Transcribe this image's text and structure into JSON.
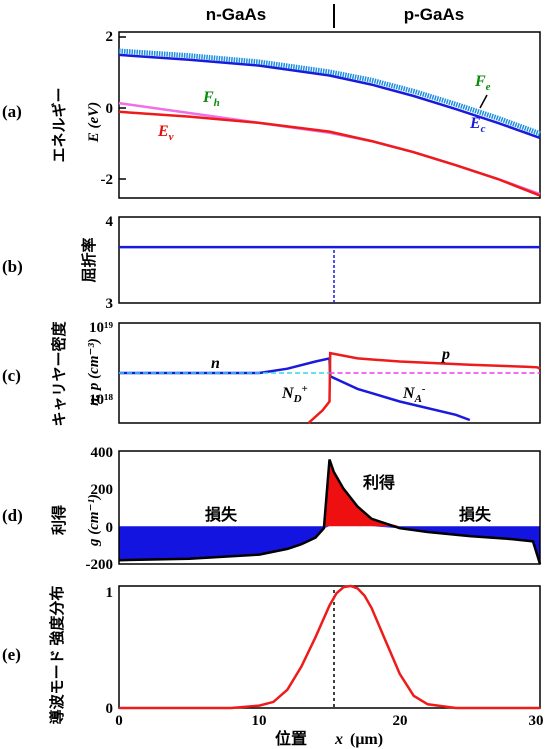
{
  "header": {
    "left": "n-GaAs",
    "right": "p-GaAs"
  },
  "xaxis": {
    "label_prefix": "位置",
    "label_var": "x",
    "label_unit": "(μm)",
    "ticks": [
      "0",
      "10",
      "20",
      "30"
    ],
    "range": [
      0,
      30
    ]
  },
  "chart_data": [
    {
      "type": "line",
      "panel": "(a)",
      "ylabel_jp": "エネルギー",
      "ylabel": "E (eV)",
      "ylim": [
        -2.2,
        2.0
      ],
      "yticks": [
        "2",
        "0",
        "-2"
      ],
      "series": [
        {
          "name": "Ec",
          "color": "#1a1adc",
          "x": [
            0,
            5,
            10,
            15,
            18,
            21,
            24,
            27,
            30
          ],
          "y": [
            1.42,
            1.3,
            1.15,
            0.9,
            0.67,
            0.38,
            0.05,
            -0.3,
            -0.68
          ]
        },
        {
          "name": "Fe",
          "color": "#1c8fe0",
          "x": [
            0,
            5,
            10,
            15,
            18,
            21,
            24,
            27,
            30
          ],
          "y": [
            1.52,
            1.4,
            1.24,
            0.99,
            0.78,
            0.5,
            0.17,
            -0.18,
            -0.57
          ]
        },
        {
          "name": "Fh",
          "color": "#ef6fe6",
          "x": [
            0,
            5,
            10,
            15,
            18,
            21,
            24,
            27,
            30
          ],
          "y": [
            0.2,
            -0.05,
            -0.3,
            -0.55,
            -0.76,
            -1.04,
            -1.37,
            -1.72,
            -2.1
          ]
        },
        {
          "name": "Ev",
          "color": "#ee1b1b",
          "x": [
            0,
            5,
            10,
            15,
            18,
            21,
            24,
            27,
            30
          ],
          "y": [
            -0.02,
            -0.14,
            -0.3,
            -0.52,
            -0.76,
            -1.04,
            -1.37,
            -1.72,
            -2.14
          ]
        }
      ],
      "annotations": [
        {
          "base": "F",
          "sub": "e",
          "color": "#0a8a0a"
        },
        {
          "base": "F",
          "sub": "h",
          "color": "#0a8a0a"
        },
        {
          "base": "E",
          "sub": "v",
          "color": "#e01010"
        },
        {
          "base": "E",
          "sub": "c",
          "color": "#1a1adc"
        }
      ]
    },
    {
      "type": "line",
      "panel": "(b)",
      "ylabel_jp": "屈折率",
      "ylim": [
        3,
        4
      ],
      "yticks": [
        "4",
        "3"
      ],
      "series": [
        {
          "name": "",
          "color": "#1a1adc",
          "x": [
            0,
            30
          ],
          "y": [
            3.65,
            3.65
          ]
        }
      ]
    },
    {
      "type": "line",
      "panel": "(c)",
      "ylabel_jp": "キャリヤー密度",
      "ylabel": "n, p (cm⁻³)",
      "yscale": "log",
      "ylim": [
        4e+17,
        1e+19
      ],
      "yticks": [
        "10¹⁹",
        "10¹⁸"
      ],
      "series": [
        {
          "name": "n",
          "color": "#1a1adc",
          "x": [
            0,
            5,
            10,
            12,
            14,
            15,
            15.05,
            17,
            20,
            24,
            25
          ],
          "y": [
            2e+18,
            2e+18,
            2e+18,
            2.3e+18,
            2.9e+18,
            3.2e+18,
            1.8e+18,
            1.2e+18,
            8e+17,
            5.2e+17,
            4.4e+17
          ]
        },
        {
          "name": "p",
          "color": "#ee1b1b",
          "x": [
            13.5,
            14.5,
            15,
            15.05,
            17,
            20,
            25,
            29,
            29.8,
            30
          ],
          "y": [
            4e+17,
            6e+17,
            8e+17,
            3.8e+18,
            3.2e+18,
            2.9e+18,
            2.6e+18,
            2.45e+18,
            2.4e+18,
            2.3e+18
          ]
        },
        {
          "name": "ND+",
          "color": "#34d6f0",
          "x": [
            0,
            15
          ],
          "y": [
            2e+18,
            2e+18
          ]
        },
        {
          "name": "NA-",
          "color": "#ee3cee",
          "x": [
            15,
            30
          ],
          "y": [
            2e+18,
            2e+18
          ]
        }
      ],
      "annotations": [
        {
          "base": "n",
          "sub": "",
          "color": "#000000"
        },
        {
          "base": "p",
          "sub": "",
          "color": "#000000"
        },
        {
          "base": "N",
          "sub": "D",
          "sup": "+",
          "color": "#000000"
        },
        {
          "base": "N",
          "sub": "A",
          "sup": "-",
          "color": "#000000"
        }
      ]
    },
    {
      "type": "area",
      "panel": "(d)",
      "ylabel_jp": "利得",
      "ylabel": "g (cm⁻¹)",
      "ylim": [
        -200,
        400
      ],
      "yticks": [
        "400",
        "200",
        "0",
        "-200"
      ],
      "series": [
        {
          "name": "g",
          "color": "#000000",
          "x": [
            0,
            5,
            10,
            12,
            13,
            14,
            14.6,
            15,
            15.3,
            16,
            17,
            18,
            20,
            22,
            25,
            28,
            29.5,
            30
          ],
          "y": [
            -180,
            -172,
            -150,
            -120,
            -95,
            -60,
            -10,
            355,
            290,
            200,
            105,
            40,
            -10,
            -30,
            -52,
            -68,
            -80,
            -200
          ]
        }
      ],
      "fills": {
        "loss": "#1414e0",
        "gain": "#ee1010"
      },
      "text_labels": {
        "loss_left": "損失",
        "loss_right": "損失",
        "gain": "利得"
      }
    },
    {
      "type": "line",
      "panel": "(e)",
      "ylabel_jp": "導波モード 強度分布",
      "ylim": [
        0,
        1
      ],
      "yticks": [
        "1",
        "0"
      ],
      "series": [
        {
          "name": "mode",
          "color": "#ee1b1b",
          "x": [
            0,
            8,
            10,
            11,
            12,
            13,
            14,
            15,
            15.5,
            16,
            16.5,
            17,
            17.5,
            18,
            19,
            20,
            21,
            22,
            24,
            30
          ],
          "y": [
            0.0,
            0.0,
            0.02,
            0.05,
            0.15,
            0.34,
            0.58,
            0.84,
            0.94,
            0.99,
            1.0,
            0.98,
            0.92,
            0.82,
            0.55,
            0.28,
            0.1,
            0.03,
            0.0,
            0.0
          ]
        }
      ]
    }
  ]
}
